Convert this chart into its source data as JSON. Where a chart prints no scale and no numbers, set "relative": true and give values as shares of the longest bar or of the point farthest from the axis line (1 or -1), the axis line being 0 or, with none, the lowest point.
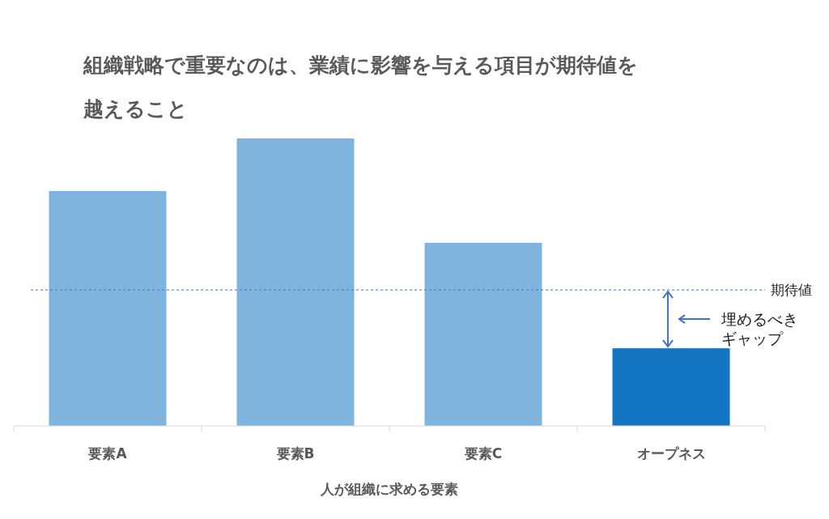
{
  "chart_data": {
    "type": "bar",
    "title": "組織戦略で重要なのは、業績に影響を与える項目が期待値を越えること",
    "xlabel": "人が組織に求める要素",
    "categories": [
      "要素A",
      "要素B",
      "要素C",
      "オープネス"
    ],
    "values": [
      0.817,
      1,
      0.637,
      0.27
    ],
    "colors": [
      "#7eb4dd",
      "#7eb4dd",
      "#7eb4dd",
      "#1475c2"
    ],
    "relative": true,
    "ref_lines": [
      {
        "axis": "y",
        "value": 0.473,
        "label": "期待値",
        "color": "#4472c4",
        "line_style": "dashed"
      }
    ],
    "annotations": [
      "埋めるべきギャップ"
    ]
  }
}
